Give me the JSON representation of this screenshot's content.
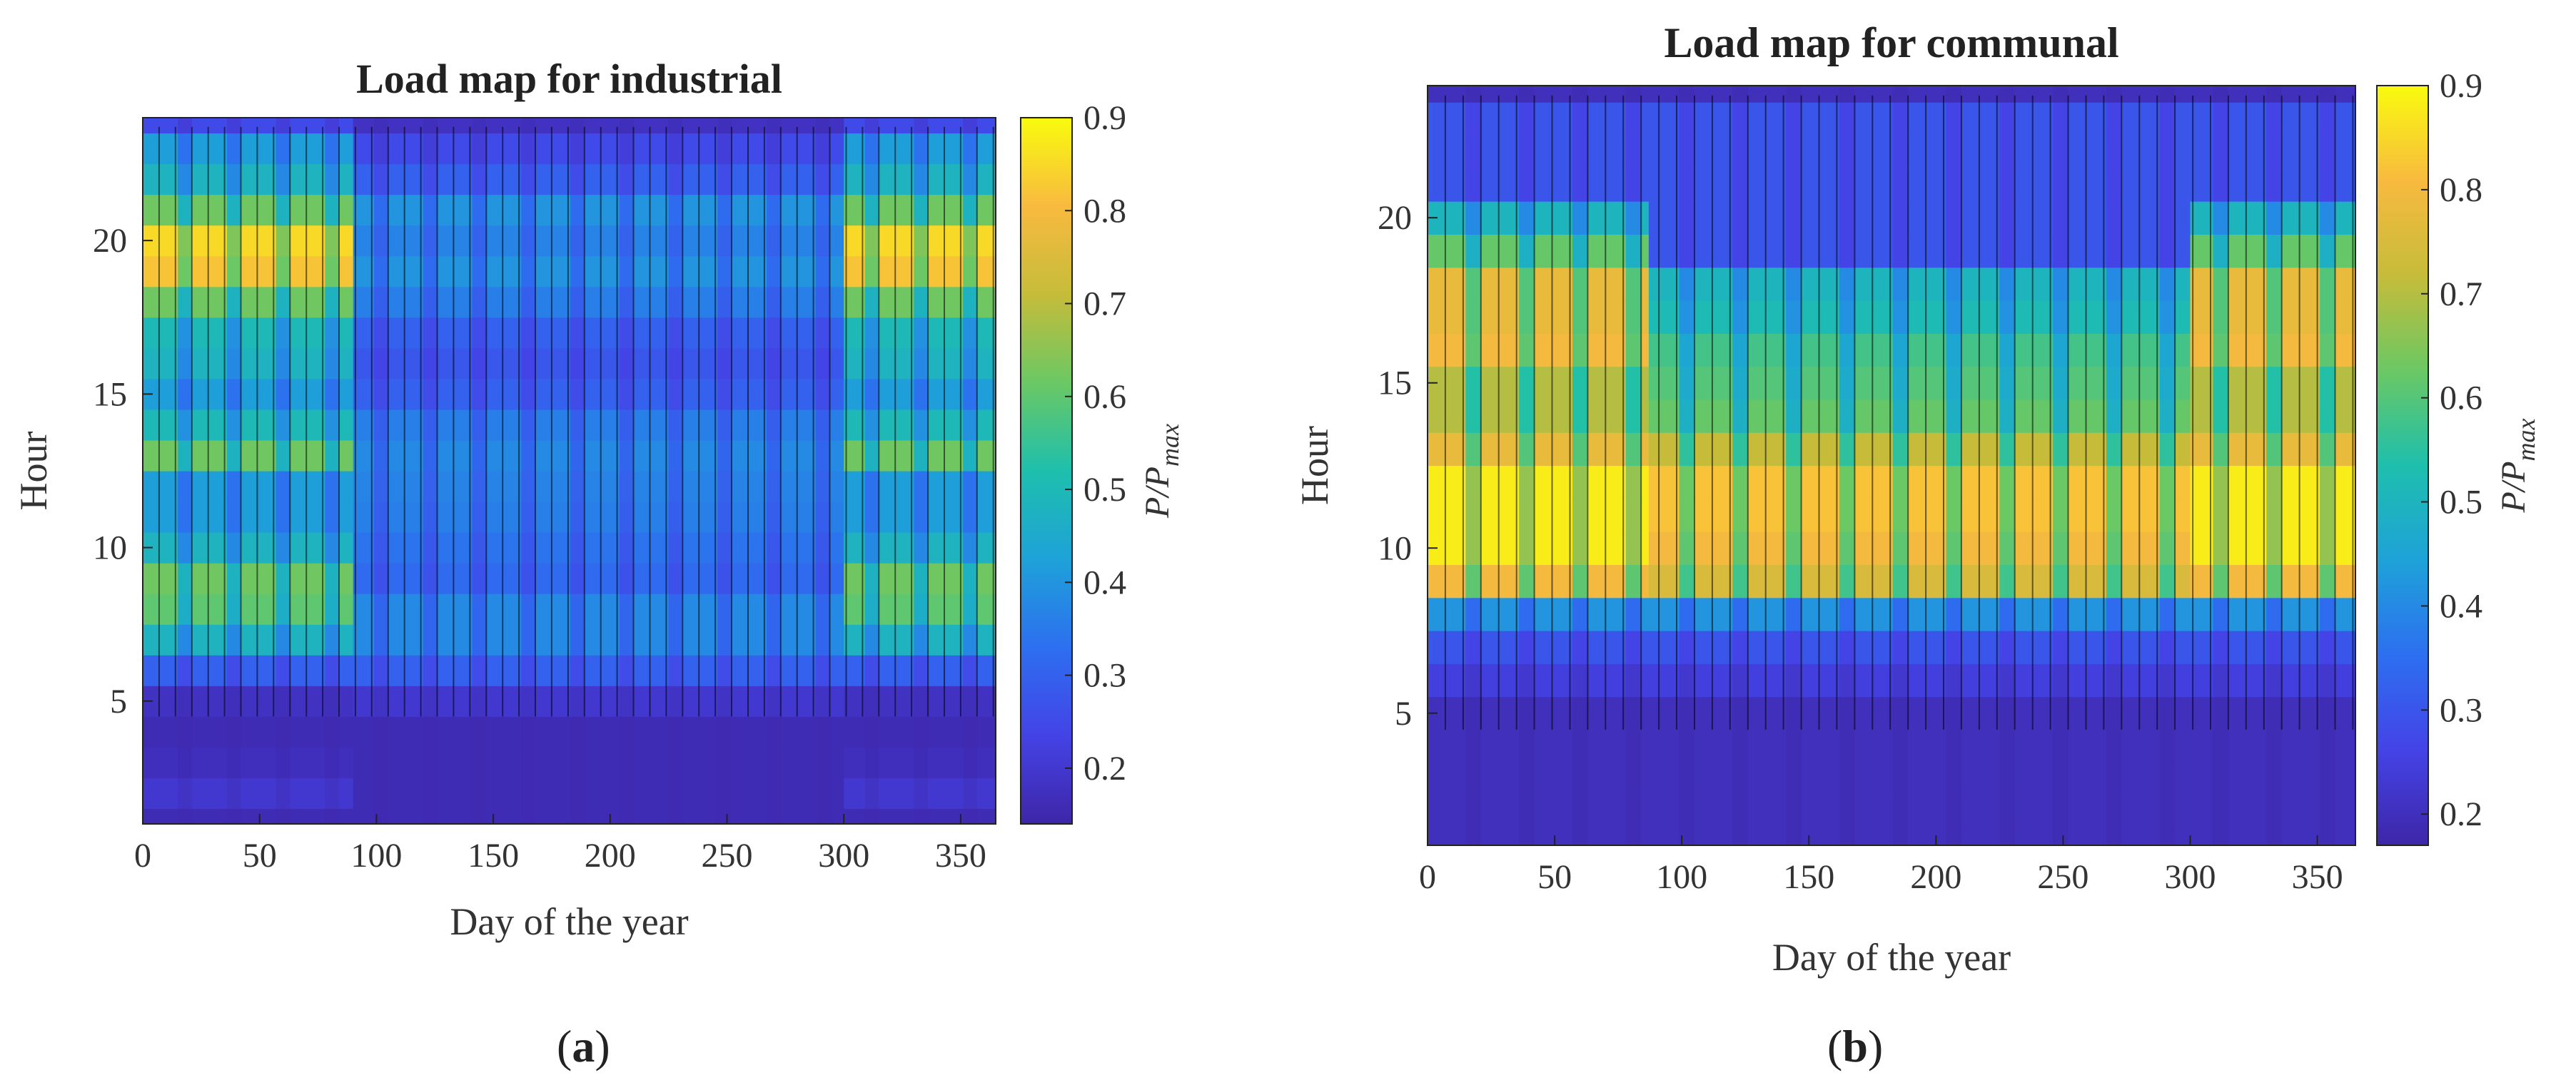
{
  "panels": [
    {
      "id": "a",
      "label": "a",
      "chart_data": {
        "type": "heatmap",
        "title": "Load map for industrial",
        "xlabel": "Day of the year",
        "ylabel": "Hour",
        "colorbar_label": "P/P_max",
        "xlim": [
          0,
          365
        ],
        "ylim": [
          1,
          24
        ],
        "xticks": [
          0,
          50,
          100,
          150,
          200,
          250,
          300,
          350
        ],
        "yticks": [
          5,
          10,
          15,
          20
        ],
        "clim": [
          0.14,
          0.9
        ],
        "cticks": [
          0.2,
          0.3,
          0.4,
          0.5,
          0.6,
          0.7,
          0.8,
          0.9
        ],
        "colormap": "parula",
        "hourly_profile_winter": [
          0.16,
          0.2,
          0.17,
          0.16,
          0.18,
          0.3,
          0.48,
          0.6,
          0.62,
          0.48,
          0.42,
          0.42,
          0.62,
          0.5,
          0.42,
          0.48,
          0.5,
          0.62,
          0.82,
          0.85,
          0.62,
          0.48,
          0.42,
          0.25
        ],
        "hourly_profile_summer": [
          0.16,
          0.16,
          0.16,
          0.16,
          0.2,
          0.3,
          0.38,
          0.38,
          0.32,
          0.34,
          0.36,
          0.37,
          0.38,
          0.36,
          0.3,
          0.28,
          0.3,
          0.36,
          0.4,
          0.37,
          0.4,
          0.3,
          0.25,
          0.18
        ],
        "winter_period_days": [
          [
            0,
            90
          ],
          [
            300,
            365
          ]
        ],
        "summer_period_days": [
          90,
          300
        ]
      }
    },
    {
      "id": "b",
      "label": "b",
      "chart_data": {
        "type": "heatmap",
        "title": "Load map for communal",
        "xlabel": "Day of the year",
        "ylabel": "Hour",
        "colorbar_label": "P/P_max",
        "xlim": [
          0,
          365
        ],
        "ylim": [
          1,
          24
        ],
        "xticks": [
          0,
          50,
          100,
          150,
          200,
          250,
          300,
          350
        ],
        "yticks": [
          5,
          10,
          15,
          20
        ],
        "clim": [
          0.17,
          0.9
        ],
        "cticks": [
          0.2,
          0.3,
          0.4,
          0.5,
          0.6,
          0.7,
          0.8,
          0.9
        ],
        "colormap": "parula",
        "hourly_profile_winter": [
          0.2,
          0.2,
          0.2,
          0.2,
          0.2,
          0.25,
          0.3,
          0.42,
          0.8,
          0.88,
          0.88,
          0.88,
          0.78,
          0.7,
          0.7,
          0.8,
          0.78,
          0.78,
          0.62,
          0.5,
          0.3,
          0.3,
          0.3,
          0.2
        ],
        "hourly_profile_summer": [
          0.2,
          0.2,
          0.2,
          0.2,
          0.2,
          0.25,
          0.3,
          0.42,
          0.75,
          0.8,
          0.82,
          0.82,
          0.72,
          0.62,
          0.6,
          0.58,
          0.52,
          0.5,
          0.3,
          0.3,
          0.3,
          0.3,
          0.3,
          0.2
        ],
        "winter_period_days": [
          [
            0,
            85
          ],
          [
            300,
            365
          ]
        ],
        "summer_period_days": [
          85,
          300
        ]
      }
    }
  ]
}
